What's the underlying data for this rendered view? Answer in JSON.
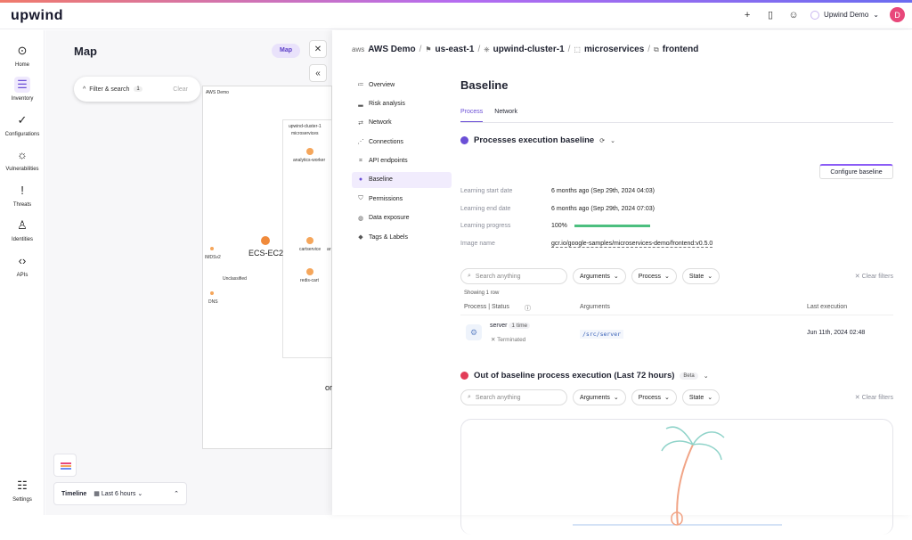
{
  "app": {
    "logo": "upwind"
  },
  "topbar": {
    "account_name": "Upwind Demo",
    "avatar_initial": "D"
  },
  "nav": [
    {
      "label": "Home"
    },
    {
      "label": "Inventory"
    },
    {
      "label": "Configurations"
    },
    {
      "label": "Vulnerabilities"
    },
    {
      "label": "Threats"
    },
    {
      "label": "Identities"
    },
    {
      "label": "APIs"
    },
    {
      "label": "Settings"
    }
  ],
  "map": {
    "title": "Map",
    "toggle_active": "Map",
    "toggle_other": "ore",
    "filter_label": "Filter & search",
    "filter_count": "1",
    "clear": "Clear",
    "aws_label": "AWS Demo",
    "cluster_label": "upwind-cluster-1",
    "ns_label": "microservices",
    "ecs_label": "ECS-EC2",
    "nodes": [
      "analytics-worker",
      "cartservice",
      "redis-cart",
      "IMDSv2",
      "Unclassified",
      "DNS"
    ],
    "clipped": [
      "ar",
      "or"
    ],
    "timeline_label": "Timeline",
    "timeline_range": "Last 6 hours"
  },
  "breadcrumb": [
    "AWS Demo",
    "us-east-1",
    "upwind-cluster-1",
    "microservices",
    "frontend"
  ],
  "panel_nav": [
    {
      "label": "Overview",
      "icon": "list-icon"
    },
    {
      "label": "Risk analysis",
      "icon": "chart-icon"
    },
    {
      "label": "Network",
      "icon": "arrows-icon"
    },
    {
      "label": "Connections",
      "icon": "connections-icon"
    },
    {
      "label": "API endpoints",
      "icon": "api-icon"
    },
    {
      "label": "Baseline",
      "icon": "baseline-icon"
    },
    {
      "label": "Permissions",
      "icon": "shield-icon"
    },
    {
      "label": "Data exposure",
      "icon": "data-icon"
    },
    {
      "label": "Tags & Labels",
      "icon": "tag-icon"
    }
  ],
  "baseline": {
    "title": "Baseline",
    "tabs": [
      "Process",
      "Network"
    ],
    "section1_title": "Processes execution baseline",
    "configure_button": "Configure baseline",
    "fields": [
      {
        "k": "Learning start date",
        "v": "6 months ago (Sep 29th, 2024 04:03)"
      },
      {
        "k": "Learning end date",
        "v": "6 months ago (Sep 29th, 2024 07:03)"
      },
      {
        "k": "Learning progress",
        "v": "100%"
      },
      {
        "k": "Image name",
        "v": "gcr.io/google-samples/microservices-demo/frontend:v0.5.0"
      }
    ],
    "learning_progress": 1.0,
    "search_placeholder": "Search anything",
    "filter_arguments": "Arguments",
    "filter_process": "Process",
    "filter_state": "State",
    "clear_filters": "Clear filters",
    "showing": "Showing 1 row",
    "columns": [
      "Process | Status",
      "Arguments",
      "Last execution"
    ],
    "row": {
      "process": "server",
      "count": "1 time",
      "status": "Terminated",
      "args": "/src/server",
      "last": "Jun 11th, 2024 02:48"
    },
    "section2_title": "Out of baseline process execution (Last 72 hours)",
    "beta": "Beta"
  }
}
